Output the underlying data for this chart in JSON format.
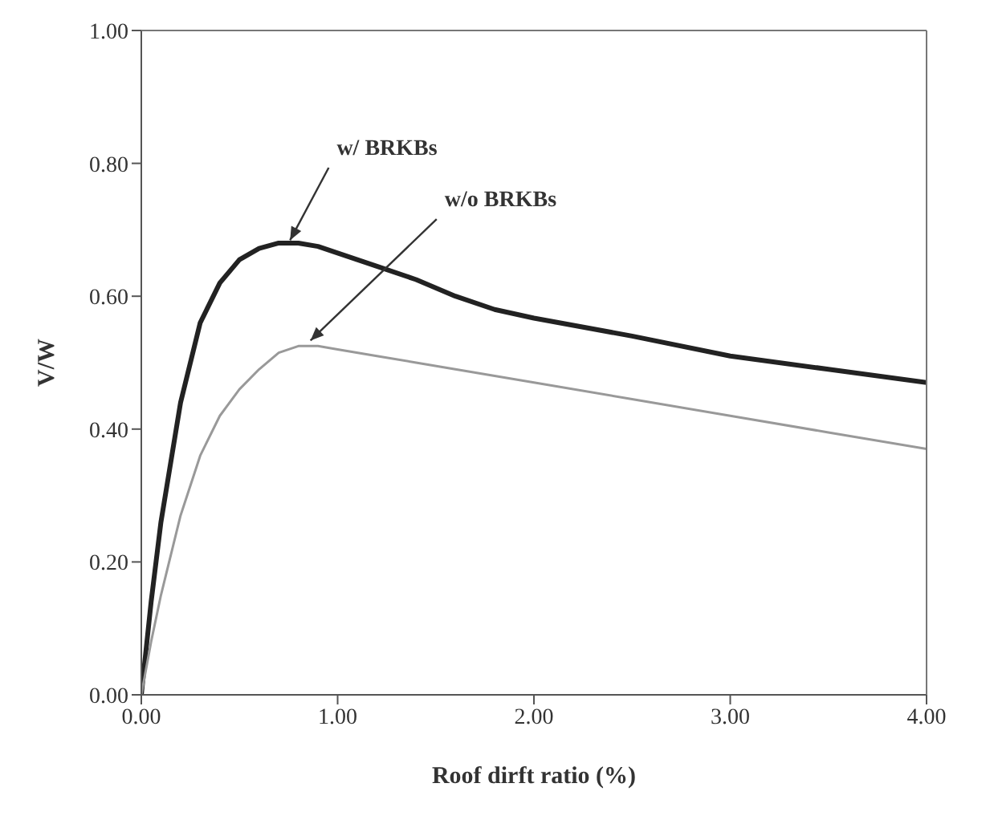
{
  "chart_data": {
    "type": "line",
    "xlabel": "Roof dirft ratio (%)",
    "ylabel": "V/W",
    "xlim": [
      0,
      4
    ],
    "ylim": [
      0,
      1
    ],
    "xticks": [
      {
        "value": 0,
        "label": "0.00"
      },
      {
        "value": 1,
        "label": "1.00"
      },
      {
        "value": 2,
        "label": "2.00"
      },
      {
        "value": 3,
        "label": "3.00"
      },
      {
        "value": 4,
        "label": "4.00"
      }
    ],
    "yticks": [
      {
        "value": 0,
        "label": "0.00"
      },
      {
        "value": 0.2,
        "label": "0.20"
      },
      {
        "value": 0.4,
        "label": "0.40"
      },
      {
        "value": 0.6,
        "label": "0.60"
      },
      {
        "value": 0.8,
        "label": "0.80"
      },
      {
        "value": 1,
        "label": "1.00"
      }
    ],
    "grid": false,
    "legend": false,
    "marker": "none",
    "line_style": "solid",
    "x": [
      0,
      0.05,
      0.1,
      0.2,
      0.3,
      0.4,
      0.5,
      0.6,
      0.7,
      0.8,
      0.9,
      1.0,
      1.2,
      1.4,
      1.6,
      1.8,
      2.0,
      2.5,
      3.0,
      3.5,
      4.0
    ],
    "series": [
      {
        "color": "#222222",
        "values": [
          0,
          0.14,
          0.26,
          0.44,
          0.56,
          0.62,
          0.655,
          0.672,
          0.68,
          0.68,
          0.675,
          0.665,
          0.645,
          0.625,
          0.6,
          0.58,
          0.567,
          0.54,
          0.51,
          0.49,
          0.47
        ]
      },
      {
        "color": "#999999",
        "values": [
          0,
          0.08,
          0.15,
          0.27,
          0.36,
          0.42,
          0.46,
          0.49,
          0.515,
          0.525,
          0.525,
          0.52,
          0.51,
          0.5,
          0.49,
          0.48,
          0.47,
          0.445,
          0.42,
          0.395,
          0.37
        ]
      }
    ],
    "annotations": [
      {
        "text": "w/ BRKBs",
        "x": 0.75,
        "y": 0.68
      },
      {
        "text": "w/o BRKBs",
        "x": 0.85,
        "y": 0.53
      }
    ]
  }
}
